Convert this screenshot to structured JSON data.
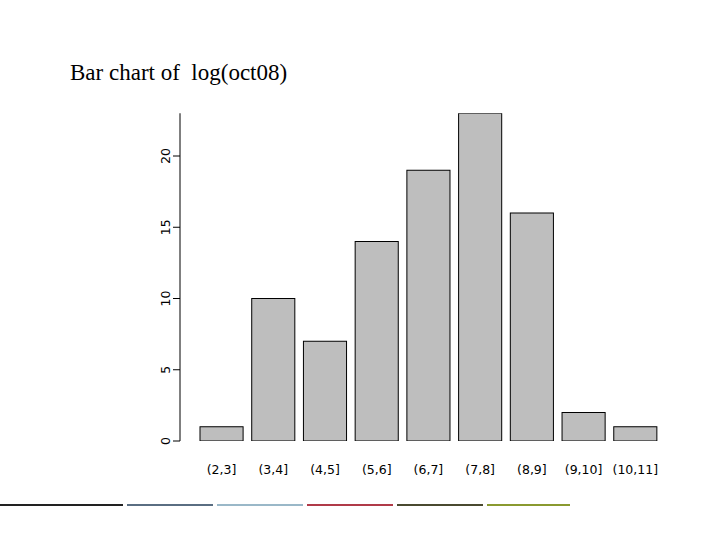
{
  "chart_data": {
    "type": "bar",
    "title": "Bar chart of  log(oct08)",
    "categories": [
      "(2,3]",
      "(3,4]",
      "(4,5]",
      "(5,6]",
      "(6,7]",
      "(7,8]",
      "(8,9]",
      "(9,10]",
      "(10,11]"
    ],
    "values": [
      1,
      10,
      7,
      14,
      19,
      23,
      16,
      2,
      1
    ],
    "color": "#bebebe",
    "ylim": [
      0,
      23
    ],
    "yticks": [
      0,
      5,
      10,
      15,
      20
    ],
    "grid": false
  }
}
